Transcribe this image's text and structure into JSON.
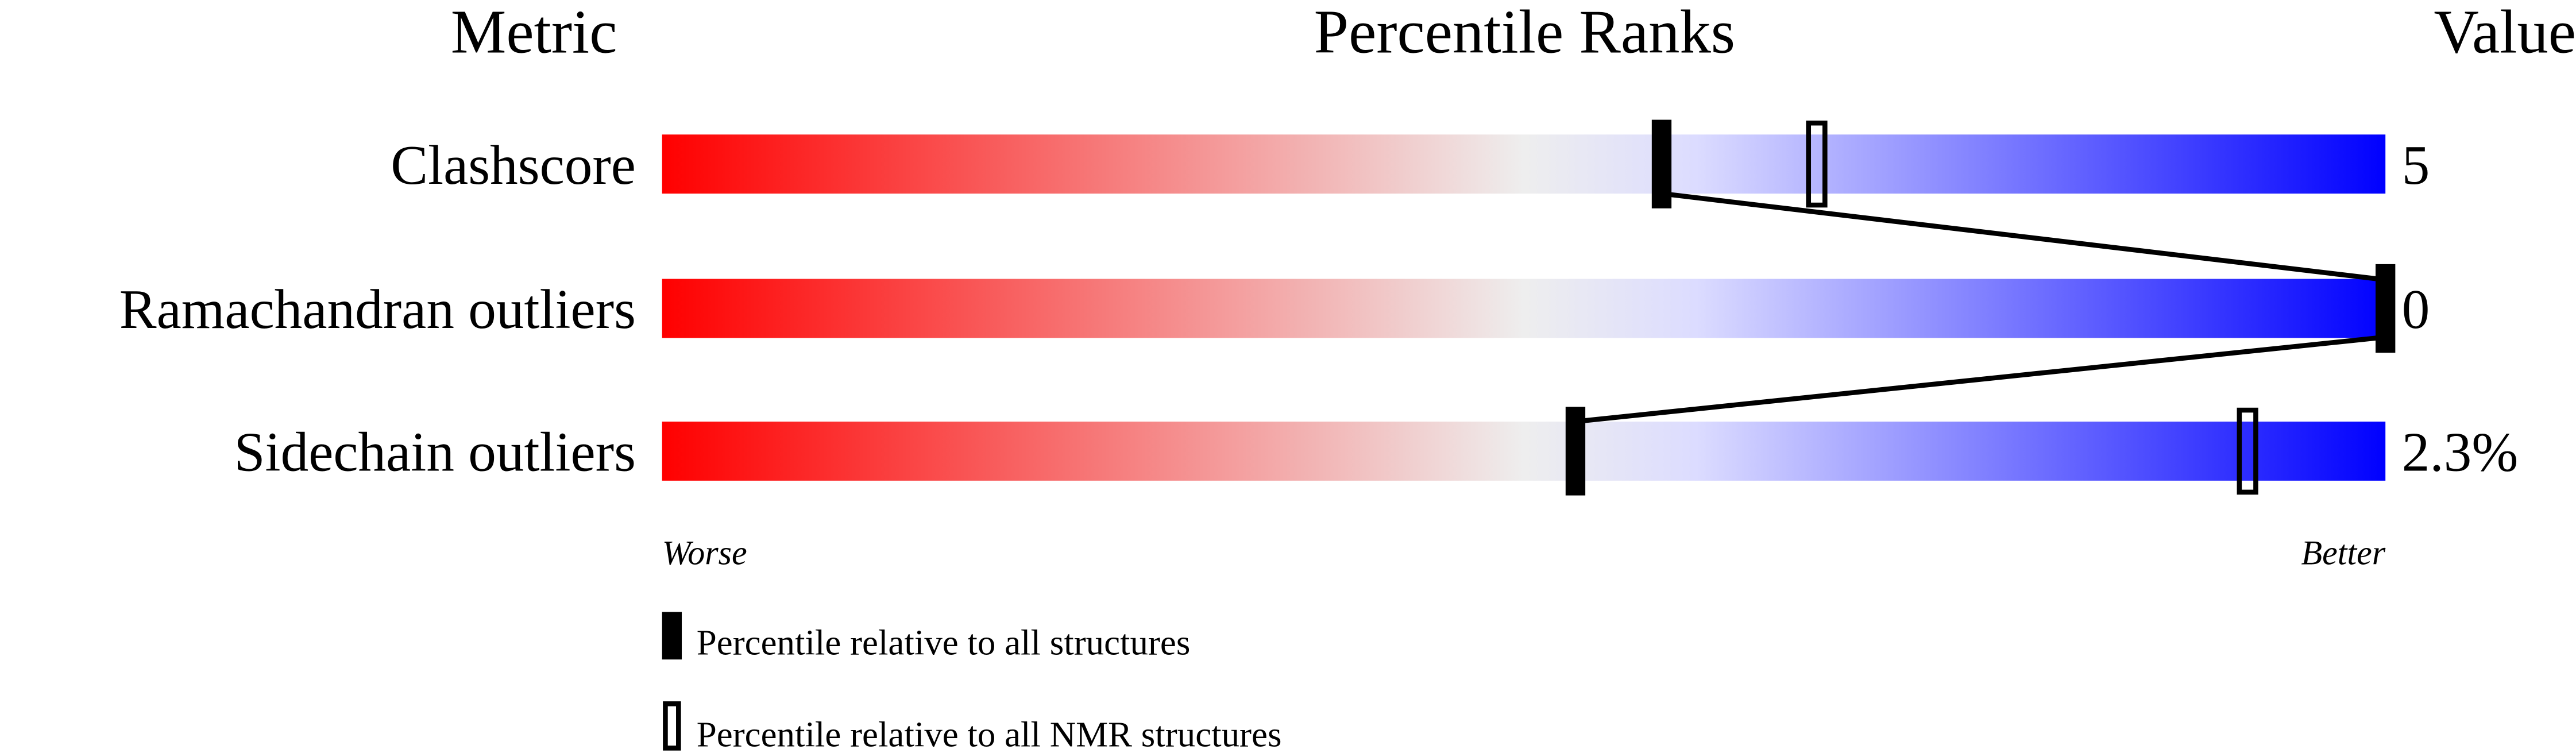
{
  "chart_data": {
    "type": "bar",
    "headers": {
      "metric": "Metric",
      "ranks": "Percentile Ranks",
      "value": "Value"
    },
    "xlim": [
      0,
      100
    ],
    "gradient_colors": [
      "#ff0000",
      "#eeeeee",
      "#dcdcff",
      "#0000ff"
    ],
    "metrics": [
      {
        "name": "Clashscore",
        "value": "5",
        "percentile_all": 58,
        "percentile_nmr": 67
      },
      {
        "name": "Ramachandran outliers",
        "value": "0",
        "percentile_all": 100,
        "percentile_nmr": null
      },
      {
        "name": "Sidechain outliers",
        "value": "2.3%",
        "percentile_all": 53,
        "percentile_nmr": 92
      }
    ],
    "axis_labels": {
      "worse": "Worse",
      "better": "Better"
    },
    "legend": [
      {
        "marker": "filled",
        "label": "Percentile relative to all structures"
      },
      {
        "marker": "outline",
        "label": "Percentile relative to all NMR structures"
      }
    ]
  }
}
